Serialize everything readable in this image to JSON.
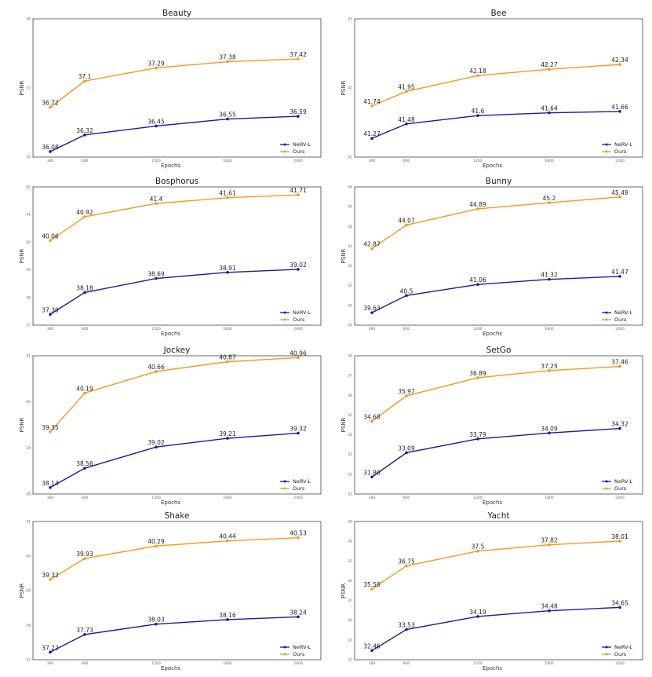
{
  "colors": {
    "nerv": "#1a1aa0",
    "ours": "#f59a1a"
  },
  "chart_data": [
    {
      "type": "line",
      "title": "Beauty",
      "xlabel": "Epochs",
      "ylabel": "PSNR",
      "x_ticks": [
        "300",
        "600",
        "1200",
        "1800",
        "2400"
      ],
      "y_ticks": [
        "36",
        "37",
        "38"
      ],
      "ylim": [
        36,
        38
      ],
      "series": [
        {
          "name": "NeRV-L",
          "values": [
            36.08,
            36.32,
            36.45,
            36.55,
            36.59
          ]
        },
        {
          "name": "Ours",
          "values": [
            36.72,
            37.1,
            37.29,
            37.38,
            37.42
          ]
        }
      ]
    },
    {
      "type": "line",
      "title": "Bee",
      "xlabel": "Epochs",
      "ylabel": "PSNR",
      "x_ticks": [
        "300",
        "600",
        "1200",
        "1800",
        "2400"
      ],
      "y_ticks": [
        "41",
        "42",
        "43"
      ],
      "ylim": [
        41,
        43
      ],
      "series": [
        {
          "name": "NeRV-L",
          "values": [
            41.27,
            41.48,
            41.6,
            41.64,
            41.66
          ]
        },
        {
          "name": "Ours",
          "values": [
            41.74,
            41.95,
            42.18,
            42.27,
            42.34
          ]
        }
      ]
    },
    {
      "type": "line",
      "title": "Bosphorus",
      "xlabel": "Epochs",
      "ylabel": "PSNR",
      "x_ticks": [
        "300",
        "600",
        "1200",
        "1800",
        "2400"
      ],
      "y_ticks": [
        "37",
        "38",
        "39",
        "40",
        "41",
        "42"
      ],
      "ylim": [
        37,
        42
      ],
      "series": [
        {
          "name": "NeRV-L",
          "values": [
            37.39,
            38.18,
            38.69,
            38.91,
            39.02
          ]
        },
        {
          "name": "Ours",
          "values": [
            40.06,
            40.92,
            41.4,
            41.61,
            41.71
          ]
        }
      ]
    },
    {
      "type": "line",
      "title": "Bunny",
      "xlabel": "Epochs",
      "ylabel": "PSNR",
      "x_ticks": [
        "300",
        "600",
        "1200",
        "1800",
        "2400"
      ],
      "y_ticks": [
        "39",
        "40",
        "41",
        "42",
        "43",
        "44",
        "45",
        "46"
      ],
      "ylim": [
        39,
        46
      ],
      "series": [
        {
          "name": "NeRV-L",
          "values": [
            39.63,
            40.5,
            41.06,
            41.32,
            41.47
          ]
        },
        {
          "name": "Ours",
          "values": [
            42.87,
            44.07,
            44.89,
            45.2,
            45.49
          ]
        }
      ]
    },
    {
      "type": "line",
      "title": "Jockey",
      "xlabel": "Epochs",
      "ylabel": "PSNR",
      "x_ticks": [
        "300",
        "600",
        "1200",
        "1800",
        "2400"
      ],
      "y_ticks": [
        "38",
        "39",
        "40",
        "41"
      ],
      "ylim": [
        38,
        41
      ],
      "series": [
        {
          "name": "NeRV-L",
          "values": [
            38.14,
            38.56,
            39.02,
            39.21,
            39.32
          ]
        },
        {
          "name": "Ours",
          "values": [
            39.35,
            40.19,
            40.66,
            40.87,
            40.96
          ]
        }
      ]
    },
    {
      "type": "line",
      "title": "SetGo",
      "xlabel": "Epochs",
      "ylabel": "PSNR",
      "x_ticks": [
        "300",
        "600",
        "1200",
        "1800",
        "2400"
      ],
      "y_ticks": [
        "31",
        "32",
        "33",
        "34",
        "35",
        "36",
        "37",
        "38"
      ],
      "ylim": [
        31,
        38
      ],
      "series": [
        {
          "name": "NeRV-L",
          "values": [
            31.86,
            33.09,
            33.79,
            34.09,
            34.32
          ]
        },
        {
          "name": "Ours",
          "values": [
            34.68,
            35.97,
            36.89,
            37.25,
            37.46
          ]
        }
      ]
    },
    {
      "type": "line",
      "title": "Shake",
      "xlabel": "Epochs",
      "ylabel": "PSNR",
      "x_ticks": [
        "300",
        "600",
        "1200",
        "1800",
        "2400"
      ],
      "y_ticks": [
        "37",
        "38",
        "39",
        "40",
        "41"
      ],
      "ylim": [
        37,
        41
      ],
      "series": [
        {
          "name": "NeRV-L",
          "values": [
            37.22,
            37.73,
            38.03,
            38.16,
            38.24
          ]
        },
        {
          "name": "Ours",
          "values": [
            39.32,
            39.93,
            40.29,
            40.44,
            40.53
          ]
        }
      ]
    },
    {
      "type": "line",
      "title": "Yacht",
      "xlabel": "Epochs",
      "ylabel": "PSNR",
      "x_ticks": [
        "300",
        "600",
        "1200",
        "1800",
        "2400"
      ],
      "y_ticks": [
        "32",
        "33",
        "34",
        "35",
        "36",
        "37",
        "38",
        "39"
      ],
      "ylim": [
        32,
        39
      ],
      "series": [
        {
          "name": "NeRV-L",
          "values": [
            32.46,
            33.53,
            34.19,
            34.48,
            34.65
          ]
        },
        {
          "name": "Ours",
          "values": [
            35.58,
            36.75,
            37.5,
            37.82,
            38.01
          ]
        }
      ]
    }
  ]
}
